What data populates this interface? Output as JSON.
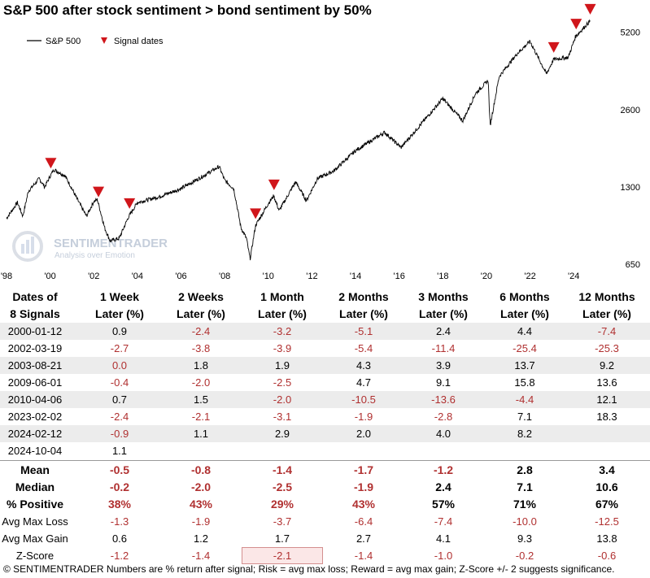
{
  "title": "S&P 500 after stock sentiment > bond sentiment by 50%",
  "legend": {
    "series_label": "S&P 500",
    "signal_label": "Signal dates"
  },
  "watermark": {
    "brand": "SENTIMENTRADER",
    "tagline": "Analysis over Emotion"
  },
  "colors": {
    "line": "#000000",
    "signal": "#d0161b",
    "negative": "#b03030",
    "shade": "#ececec"
  },
  "chart_data": {
    "type": "line",
    "series": [
      {
        "name": "S&P 500",
        "points": [
          [
            "1998-01",
            980
          ],
          [
            "1998-07",
            1130
          ],
          [
            "1998-10",
            1000
          ],
          [
            "1999-01",
            1250
          ],
          [
            "1999-07",
            1400
          ],
          [
            "1999-10",
            1300
          ],
          [
            "2000-01",
            1430
          ],
          [
            "2000-03",
            1520
          ],
          [
            "2000-09",
            1440
          ],
          [
            "2000-12",
            1320
          ],
          [
            "2001-04",
            1160
          ],
          [
            "2001-09",
            1000
          ],
          [
            "2002-01",
            1140
          ],
          [
            "2002-03",
            1160
          ],
          [
            "2002-07",
            900
          ],
          [
            "2002-10",
            800
          ],
          [
            "2003-03",
            820
          ],
          [
            "2003-08",
            990
          ],
          [
            "2004-01",
            1130
          ],
          [
            "2005-01",
            1190
          ],
          [
            "2006-01",
            1280
          ],
          [
            "2007-01",
            1430
          ],
          [
            "2007-10",
            1560
          ],
          [
            "2008-01",
            1380
          ],
          [
            "2008-06",
            1280
          ],
          [
            "2008-10",
            900
          ],
          [
            "2009-01",
            820
          ],
          [
            "2009-03",
            680
          ],
          [
            "2009-06",
            920
          ],
          [
            "2010-01",
            1120
          ],
          [
            "2010-04",
            1200
          ],
          [
            "2010-07",
            1050
          ],
          [
            "2011-04",
            1360
          ],
          [
            "2011-10",
            1150
          ],
          [
            "2012-04",
            1400
          ],
          [
            "2013-01",
            1500
          ],
          [
            "2014-01",
            1800
          ],
          [
            "2015-05",
            2120
          ],
          [
            "2016-02",
            1850
          ],
          [
            "2017-01",
            2280
          ],
          [
            "2018-01",
            2870
          ],
          [
            "2018-12",
            2350
          ],
          [
            "2019-07",
            3000
          ],
          [
            "2020-02",
            3380
          ],
          [
            "2020-03",
            2240
          ],
          [
            "2020-08",
            3500
          ],
          [
            "2021-06",
            4300
          ],
          [
            "2022-01",
            4790
          ],
          [
            "2022-10",
            3580
          ],
          [
            "2023-02",
            4080
          ],
          [
            "2023-10",
            4150
          ],
          [
            "2024-02",
            5000
          ],
          [
            "2024-10",
            5750
          ]
        ]
      }
    ],
    "signals": [
      "2000-01-12",
      "2002-03-19",
      "2003-08-21",
      "2009-06-01",
      "2010-04-06",
      "2023-02-02",
      "2024-02-12",
      "2024-10-04"
    ],
    "y_scale": "log",
    "ylim": [
      650,
      6000
    ],
    "y_ticks": [
      650,
      1300,
      2600,
      5200
    ],
    "y_tick_labels": [
      "650",
      "1300",
      "2600",
      "5200"
    ],
    "x_ticks": [
      "'98",
      "'00",
      "'02",
      "'04",
      "'06",
      "'08",
      "'10",
      "'12",
      "'14",
      "'16",
      "'18",
      "'20",
      "'22",
      "'24"
    ],
    "legend_position": "top-left"
  },
  "table": {
    "headers": [
      [
        "Dates of",
        "8 Signals"
      ],
      [
        "1 Week",
        "Later (%)"
      ],
      [
        "2 Weeks",
        "Later (%)"
      ],
      [
        "1 Month",
        "Later (%)"
      ],
      [
        "2 Months",
        "Later (%)"
      ],
      [
        "3 Months",
        "Later (%)"
      ],
      [
        "6 Months",
        "Later (%)"
      ],
      [
        "12 Months",
        "Later (%)"
      ]
    ],
    "rows": [
      [
        "2000-01-12",
        "0.9",
        "-2.4",
        "-3.2",
        "-5.1",
        "2.4",
        "4.4",
        "-7.4"
      ],
      [
        "2002-03-19",
        "-2.7",
        "-3.8",
        "-3.9",
        "-5.4",
        "-11.4",
        "-25.4",
        "-25.3"
      ],
      [
        "2003-08-21",
        "0.0",
        "1.8",
        "1.9",
        "4.3",
        "3.9",
        "13.7",
        "9.2"
      ],
      [
        "2009-06-01",
        "-0.4",
        "-2.0",
        "-2.5",
        "4.7",
        "9.1",
        "15.8",
        "13.6"
      ],
      [
        "2010-04-06",
        "0.7",
        "1.5",
        "-2.0",
        "-10.5",
        "-13.6",
        "-4.4",
        "12.1"
      ],
      [
        "2023-02-02",
        "-2.4",
        "-2.1",
        "-3.1",
        "-1.9",
        "-2.8",
        "7.1",
        "18.3"
      ],
      [
        "2024-02-12",
        "-0.9",
        "1.1",
        "2.9",
        "2.0",
        "4.0",
        "8.2",
        ""
      ],
      [
        "2024-10-04",
        "1.1",
        "",
        "",
        "",
        "",
        "",
        ""
      ]
    ],
    "summary": [
      [
        "Mean",
        "-0.5",
        "-0.8",
        "-1.4",
        "-1.7",
        "-1.2",
        "2.8",
        "3.4"
      ],
      [
        "Median",
        "-0.2",
        "-2.0",
        "-2.5",
        "-1.9",
        "2.4",
        "7.1",
        "10.6"
      ],
      [
        "% Positive",
        "38%",
        "43%",
        "29%",
        "43%",
        "57%",
        "71%",
        "67%"
      ]
    ],
    "stats": [
      [
        "Avg Max Loss",
        "-1.3",
        "-1.9",
        "-3.7",
        "-6.4",
        "-7.4",
        "-10.0",
        "-12.5"
      ],
      [
        "Avg Max Gain",
        "0.6",
        "1.2",
        "1.7",
        "2.7",
        "4.1",
        "9.3",
        "13.8"
      ],
      [
        "Z-Score",
        "-1.2",
        "-1.4",
        "-2.1",
        "-1.4",
        "-1.0",
        "-0.2",
        "-0.6"
      ]
    ]
  },
  "footer": "© SENTIMENTRADER  Numbers are % return after signal; Risk = avg max loss; Reward = avg max gain; Z-Score +/- 2 suggests significance."
}
